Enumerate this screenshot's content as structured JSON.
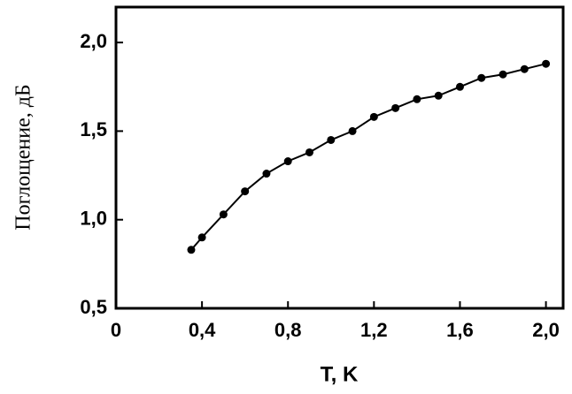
{
  "chart_data": {
    "type": "line",
    "x_label": "T, K",
    "y_label": "Поглощение, дБ",
    "x": [
      0.35,
      0.4,
      0.5,
      0.6,
      0.7,
      0.8,
      0.9,
      1.0,
      1.1,
      1.2,
      1.3,
      1.4,
      1.5,
      1.6,
      1.7,
      1.8,
      1.9,
      2.0
    ],
    "series": [
      {
        "color": "#000000",
        "values": [
          0.83,
          0.9,
          1.03,
          1.16,
          1.26,
          1.33,
          1.38,
          1.45,
          1.5,
          1.58,
          1.63,
          1.68,
          1.7,
          1.75,
          1.8,
          1.82,
          1.85,
          1.88
        ]
      }
    ],
    "xlim": [
      0,
      2.08
    ],
    "ylim": [
      0.5,
      2.2
    ],
    "xticks": [
      0,
      {
        "value": 0.4,
        "label": "0,4"
      },
      {
        "value": 0.8,
        "label": "0,8"
      },
      {
        "value": 1.2,
        "label": "1,2"
      },
      {
        "value": 1.6,
        "label": "1,6"
      },
      {
        "value": 2.0,
        "label": "2,0"
      }
    ],
    "yticks": [
      {
        "value": 0.5,
        "label": "0,5"
      },
      {
        "value": 1.0,
        "label": "1,0"
      },
      {
        "value": 1.5,
        "label": "1,5"
      },
      {
        "value": 2.0,
        "label": "2,0"
      }
    ],
    "grid": false
  }
}
